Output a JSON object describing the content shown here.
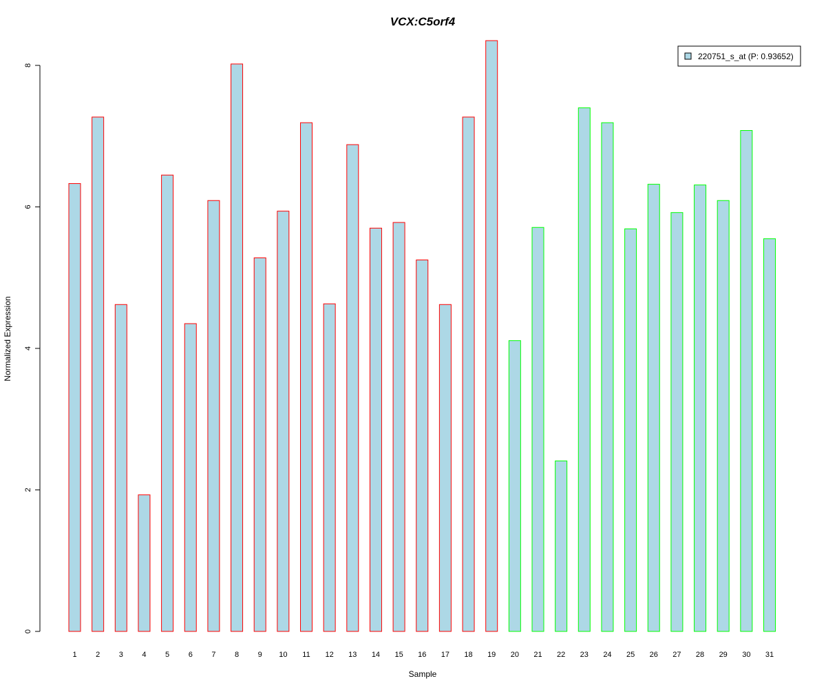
{
  "chart_data": {
    "type": "bar",
    "title": "VCX:C5orf4",
    "xlabel": "Sample",
    "ylabel": "Normalized Expression",
    "ylim": [
      0,
      8.35
    ],
    "yticks": [
      0,
      2,
      4,
      6,
      8
    ],
    "grid": false,
    "legend_position": "top-right",
    "categories": [
      "1",
      "2",
      "3",
      "4",
      "5",
      "6",
      "7",
      "8",
      "9",
      "10",
      "11",
      "12",
      "13",
      "14",
      "15",
      "16",
      "17",
      "18",
      "19",
      "20",
      "21",
      "22",
      "23",
      "24",
      "25",
      "26",
      "27",
      "28",
      "29",
      "30",
      "31"
    ],
    "series": [
      {
        "name": "220751_s_at (P: 0.93652)",
        "values": [
          6.33,
          7.27,
          4.62,
          1.93,
          6.45,
          4.35,
          6.09,
          8.02,
          5.28,
          5.94,
          7.19,
          4.63,
          6.88,
          5.7,
          5.78,
          5.25,
          4.62,
          7.27,
          8.35,
          4.11,
          5.71,
          2.41,
          7.4,
          7.19,
          5.69,
          6.32,
          5.92,
          6.31,
          6.09,
          7.08,
          5.55
        ]
      }
    ],
    "groups": [
      {
        "samples": [
          1,
          19
        ],
        "border_color": "#ff0000"
      },
      {
        "samples": [
          20,
          31
        ],
        "border_color": "#00ff00"
      }
    ],
    "bar_fill": "#add8e6",
    "title_color": "#0000cd"
  }
}
